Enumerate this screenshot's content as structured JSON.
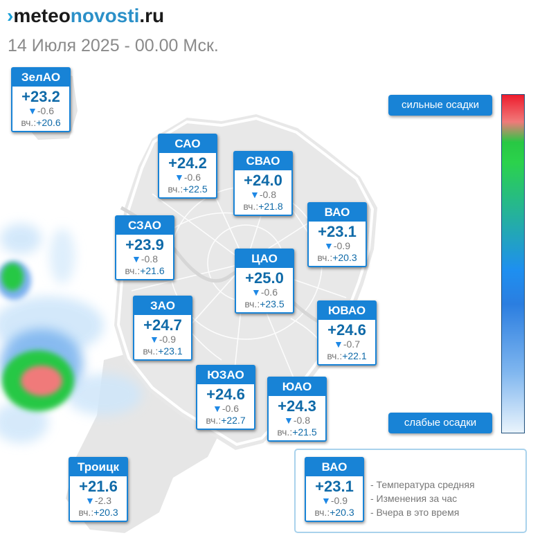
{
  "header": {
    "logo_prefix": "meteo",
    "logo_mid": "novosti",
    "logo_suffix": ".ru",
    "subtitle": "14 Июля 2025 - 00.00 Мск."
  },
  "yesterday_prefix": "вч.:",
  "districts": [
    {
      "id": "zelao",
      "name": "ЗелАО",
      "temp": "+23.2",
      "change": "-0.6",
      "yesterday": "+20.6"
    },
    {
      "id": "sao",
      "name": "САО",
      "temp": "+24.2",
      "change": "-0.6",
      "yesterday": "+22.5"
    },
    {
      "id": "svao",
      "name": "СВАО",
      "temp": "+24.0",
      "change": "-0.8",
      "yesterday": "+21.8"
    },
    {
      "id": "vao",
      "name": "ВАО",
      "temp": "+23.1",
      "change": "-0.9",
      "yesterday": "+20.3"
    },
    {
      "id": "szao",
      "name": "СЗАО",
      "temp": "+23.9",
      "change": "-0.8",
      "yesterday": "+21.6"
    },
    {
      "id": "cao",
      "name": "ЦАО",
      "temp": "+25.0",
      "change": "-0.6",
      "yesterday": "+23.5"
    },
    {
      "id": "zao",
      "name": "ЗАО",
      "temp": "+24.7",
      "change": "-0.9",
      "yesterday": "+23.1"
    },
    {
      "id": "yuvao",
      "name": "ЮВАО",
      "temp": "+24.6",
      "change": "-0.7",
      "yesterday": "+22.1"
    },
    {
      "id": "yuzao",
      "name": "ЮЗАО",
      "temp": "+24.6",
      "change": "-0.6",
      "yesterday": "+22.7"
    },
    {
      "id": "yuao",
      "name": "ЮАО",
      "temp": "+24.3",
      "change": "-0.8",
      "yesterday": "+21.5"
    },
    {
      "id": "troitsk",
      "name": "Троицк",
      "temp": "+21.6",
      "change": "-2.3",
      "yesterday": "+20.3"
    }
  ],
  "precip_scale": {
    "high_label": "сильные осадки",
    "low_label": "слабые осадки",
    "colors": [
      "#ee1c2d",
      "#f07a7a",
      "#28c844",
      "#1e8ff0",
      "#7fb6ef",
      "#eaf4fc"
    ]
  },
  "legend": {
    "sample": {
      "name": "ВАО",
      "temp": "+23.1",
      "change": "-0.9",
      "yesterday": "+20.3"
    },
    "line1": "- Температура средняя",
    "line2": "- Изменения за час",
    "line3": "- Вчера в это время"
  }
}
